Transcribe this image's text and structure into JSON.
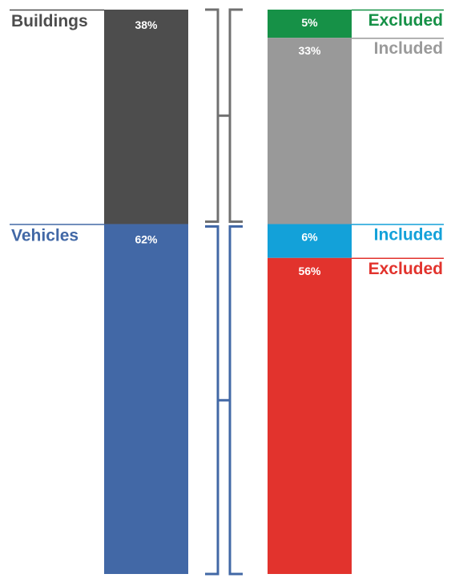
{
  "chart_data": {
    "type": "bar",
    "categories": [
      "Buildings",
      "Vehicles"
    ],
    "values": [
      38,
      62
    ],
    "value_labels": [
      "38%",
      "62%"
    ],
    "category_colors": [
      "#4d4d4d",
      "#4268a6"
    ],
    "breakdown": [
      {
        "parent": "Buildings",
        "name": "Excluded",
        "value": 5,
        "value_label": "5%",
        "color": "#169147",
        "label_color": "#169147"
      },
      {
        "parent": "Buildings",
        "name": "Included",
        "value": 33,
        "value_label": "33%",
        "color": "#999999",
        "label_color": "#9a9a9a"
      },
      {
        "parent": "Vehicles",
        "name": "Included",
        "value": 6,
        "value_label": "6%",
        "color": "#13a1d9",
        "label_color": "#13a1d9"
      },
      {
        "parent": "Vehicles",
        "name": "Excluded",
        "value": 56,
        "value_label": "56%",
        "color": "#e2332d",
        "label_color": "#e2332d"
      }
    ],
    "total": 100,
    "bracket_colors": [
      "#707070",
      "#4268a6"
    ]
  }
}
